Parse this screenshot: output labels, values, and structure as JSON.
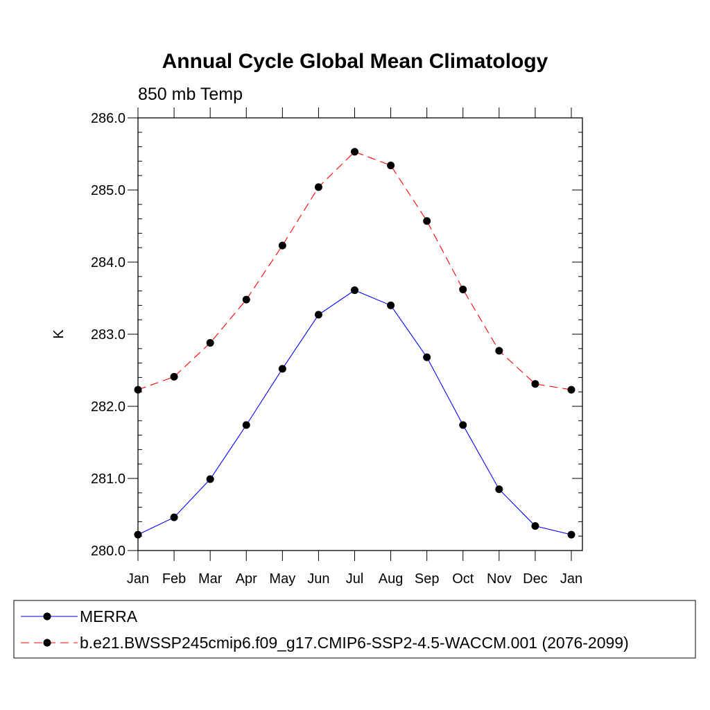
{
  "chart_data": {
    "type": "line",
    "title": "Annual Cycle Global Mean Climatology",
    "subtitle": "850 mb Temp",
    "xlabel": "",
    "ylabel": "K",
    "categories": [
      "Jan",
      "Feb",
      "Mar",
      "Apr",
      "May",
      "Jun",
      "Jul",
      "Aug",
      "Sep",
      "Oct",
      "Nov",
      "Dec",
      "Jan"
    ],
    "ylim": [
      280.0,
      286.0
    ],
    "yticks": [
      "280.0",
      "281.0",
      "282.0",
      "283.0",
      "284.0",
      "285.0",
      "286.0"
    ],
    "grid": false,
    "legend_position": "bottom",
    "series": [
      {
        "name": "MERRA",
        "color": "#0000ff",
        "line_style": "solid",
        "marker": "filled-circle",
        "values": [
          280.22,
          280.46,
          280.99,
          281.74,
          282.52,
          283.27,
          283.61,
          283.4,
          282.68,
          281.74,
          280.85,
          280.34,
          280.22
        ]
      },
      {
        "name": "b.e21.BWSSP245cmip6.f09_g17.CMIP6-SSP2-4.5-WACCM.001 (2076-2099)",
        "color": "#ff0000",
        "line_style": "dashed",
        "marker": "filled-circle",
        "values": [
          282.23,
          282.41,
          282.88,
          283.48,
          284.23,
          285.04,
          285.53,
          285.34,
          284.57,
          283.62,
          282.77,
          282.31,
          282.23
        ]
      }
    ]
  }
}
